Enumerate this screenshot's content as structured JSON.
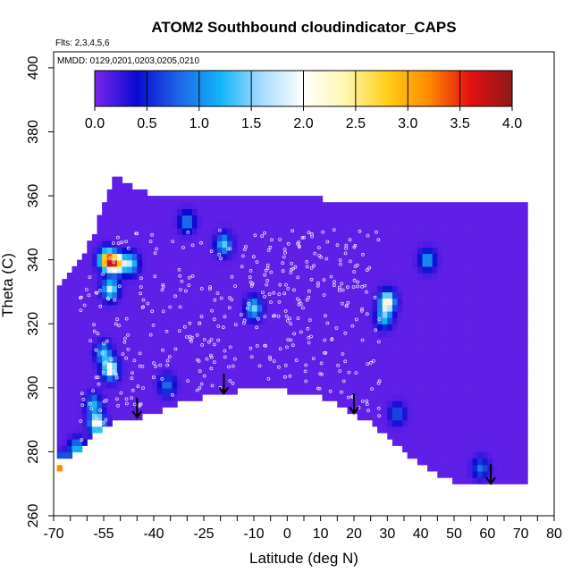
{
  "chart_data": {
    "type": "heatmap",
    "title": "ATOM2 Southbound cloudindicator_CAPS",
    "annotations": [
      "Flts: 2,3,4,5,6",
      "MMDD: 0129,0201,0203,0205,0210"
    ],
    "xlabel": "Latitude (deg N)",
    "ylabel": "Theta (C)",
    "xlim": [
      -70,
      80
    ],
    "ylim": [
      260,
      405
    ],
    "x_tick_labels": [
      "-70",
      "-55",
      "-40",
      "-25",
      "-10",
      "0",
      "10",
      "20",
      "30",
      "40",
      "50",
      "60",
      "70",
      "80"
    ],
    "y_tick_labels": [
      "260",
      "280",
      "300",
      "320",
      "340",
      "360",
      "380",
      "400"
    ],
    "colorbar": {
      "range": [
        0,
        4
      ],
      "tick_labels": [
        "0.0",
        "0.5",
        "1.0",
        "1.5",
        "2.0",
        "2.5",
        "3.0",
        "3.5",
        "4.0"
      ],
      "colors": [
        "#7b26ef",
        "#0a0ad0",
        "#1e64e8",
        "#10b4f8",
        "#a8dcff",
        "#ffffff",
        "#fff7b0",
        "#ffcf18",
        "#ff8a00",
        "#e21010",
        "#8e1a1a"
      ]
    },
    "background_value": 0.1,
    "coverage": {
      "lat": [
        -69,
        -66,
        -62,
        -58,
        -55,
        -52,
        -48,
        -44,
        -40,
        -35,
        -30,
        -25,
        -20,
        -15,
        -10,
        -5,
        0,
        5,
        10,
        15,
        20,
        25,
        30,
        35,
        40,
        45,
        50,
        55,
        60,
        65,
        70,
        71
      ],
      "theta_bottom": [
        274,
        277,
        281,
        285,
        287,
        289,
        290,
        291,
        292,
        294,
        296,
        297,
        298,
        299,
        300,
        300,
        299,
        299,
        297,
        295,
        292,
        289,
        285,
        280,
        276,
        273,
        271,
        270,
        270,
        270,
        270,
        270
      ],
      "theta_top": [
        330,
        335,
        340,
        348,
        358,
        366,
        364,
        362,
        360,
        360,
        360,
        360,
        360,
        360,
        360,
        360,
        360,
        360,
        359,
        358,
        357,
        357,
        357,
        357,
        358,
        358,
        358,
        358,
        358,
        358,
        358,
        358
      ]
    },
    "features": [
      {
        "lat": -54,
        "theta": 340,
        "value": 3.4
      },
      {
        "lat": -51,
        "theta": 339,
        "value": 2.8
      },
      {
        "lat": -47,
        "theta": 339,
        "value": 1.6
      },
      {
        "lat": -53,
        "theta": 331,
        "value": 1.8
      },
      {
        "lat": -55,
        "theta": 311,
        "value": 1.3
      },
      {
        "lat": -53,
        "theta": 306,
        "value": 2.2
      },
      {
        "lat": -58,
        "theta": 295,
        "value": 1.2
      },
      {
        "lat": -57,
        "theta": 289,
        "value": 2.2
      },
      {
        "lat": -63,
        "theta": 281,
        "value": 1.3
      },
      {
        "lat": -66,
        "theta": 276,
        "value": 0.8
      },
      {
        "lat": -68,
        "theta": 275,
        "value": 3.0
      },
      {
        "lat": -36,
        "theta": 301,
        "value": 0.9
      },
      {
        "lat": -19,
        "theta": 345,
        "value": 1.4
      },
      {
        "lat": -10,
        "theta": 325,
        "value": 1.5
      },
      {
        "lat": -30,
        "theta": 352,
        "value": 1.0
      },
      {
        "lat": 30,
        "theta": 327,
        "value": 2.4
      },
      {
        "lat": 42,
        "theta": 340,
        "value": 1.2
      },
      {
        "lat": 29,
        "theta": 322,
        "value": 1.3
      },
      {
        "lat": 33,
        "theta": 292,
        "value": 0.8
      },
      {
        "lat": 58,
        "theta": 275,
        "value": 0.9
      }
    ],
    "flight_markers_lat": [
      -45,
      -19,
      20,
      61
    ],
    "grid": false,
    "legend": "colorbar, top"
  }
}
